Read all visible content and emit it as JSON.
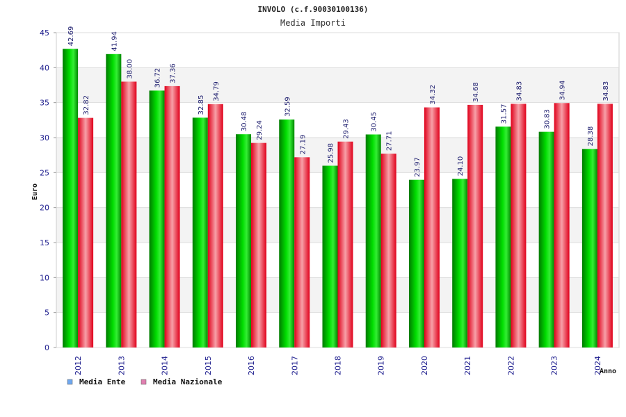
{
  "chart_data": {
    "type": "bar",
    "title": "INVOLO (c.f.90030100136)",
    "subtitle": "Media Importi",
    "ylabel": "Euro",
    "xlabel": "Anno",
    "ylim": [
      0,
      45
    ],
    "yticks": [
      0,
      5,
      10,
      15,
      20,
      25,
      30,
      35,
      40,
      45
    ],
    "categories": [
      "2012",
      "2013",
      "2014",
      "2015",
      "2016",
      "2017",
      "2018",
      "2019",
      "2020",
      "2021",
      "2022",
      "2023",
      "2024"
    ],
    "series": [
      {
        "name": "Media Ente",
        "color": "#00cc00",
        "legend_color": "#6fa8f0",
        "values": [
          42.69,
          41.94,
          36.72,
          32.85,
          30.48,
          32.59,
          25.98,
          30.45,
          23.97,
          24.1,
          31.57,
          30.83,
          28.38
        ],
        "labels": [
          "42.69",
          "41.94",
          "36.72",
          "32.85",
          "30.48",
          "32.59",
          "25.98",
          "30.45",
          "23.97",
          "24.10",
          "31.57",
          "30.83",
          "28.38"
        ]
      },
      {
        "name": "Media Nazionale",
        "color": "#ff2233",
        "legend_color": "#e080b0",
        "values": [
          32.82,
          38.0,
          37.36,
          34.79,
          29.24,
          27.19,
          29.43,
          27.71,
          34.32,
          34.68,
          34.83,
          34.94,
          34.83
        ],
        "labels": [
          "32.82",
          "38.00",
          "37.36",
          "34.79",
          "29.24",
          "27.19",
          "29.43",
          "27.71",
          "34.32",
          "34.68",
          "34.83",
          "34.94",
          "34.83"
        ]
      }
    ],
    "grid": true,
    "legend_position": "bottom-left"
  }
}
